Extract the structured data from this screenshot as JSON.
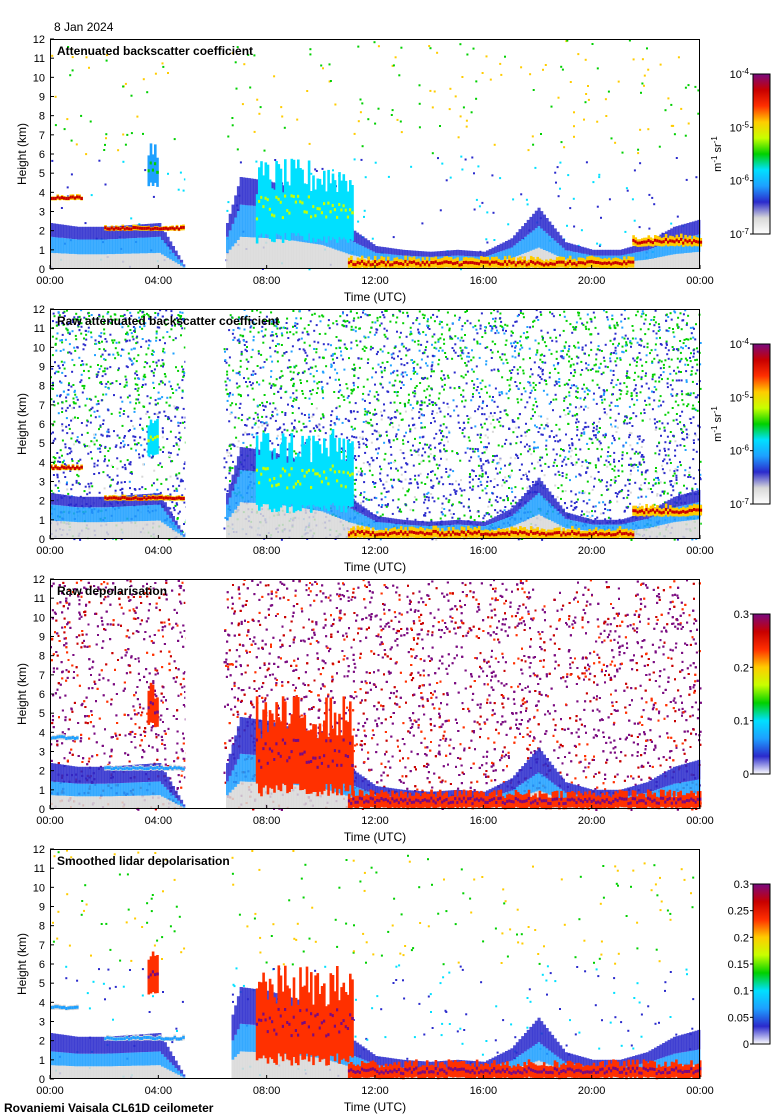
{
  "page": {
    "date": "8 Jan 2024",
    "footer": "Rovaniemi Vaisala CL61D ceilometer"
  },
  "colors": {
    "cmap": [
      "#ffffff",
      "#d8d8d8",
      "#2a2acc",
      "#1ea0ff",
      "#00e0ff",
      "#00d000",
      "#c8ff00",
      "#ffcc00",
      "#ff3000",
      "#c80000",
      "#7a0a80"
    ],
    "gap": "#ffffff",
    "frame": "#000000"
  },
  "chart_data": [
    {
      "type": "heatmap",
      "title": "Attenuated backscatter coefficient",
      "xlabel": "Time (UTC)",
      "ylabel": "Height (km)",
      "xticks": [
        "00:00",
        "04:00",
        "08:00",
        "12:00",
        "16:00",
        "20:00",
        "00:00"
      ],
      "yticks": [
        "0",
        "1",
        "2",
        "3",
        "4",
        "5",
        "6",
        "7",
        "8",
        "9",
        "10",
        "11",
        "12"
      ],
      "xlim_hours": [
        0,
        24
      ],
      "ylim": [
        0,
        12
      ],
      "colorbar": {
        "ticks": [
          "10^-7",
          "10^-6",
          "10^-5",
          "10^-4"
        ],
        "label": "m^-1 sr^-1",
        "scale": "log",
        "range": [
          1e-07,
          0.0001
        ]
      },
      "data_gap_hours": [
        5.0,
        6.4
      ],
      "background": "clear",
      "boundary_layer_top_km": [
        2.4,
        2.2,
        2.2,
        2.3,
        2.4,
        0,
        0,
        4.8,
        4.6,
        4.2,
        3.6,
        2.2,
        1.2,
        1.0,
        0.9,
        1.0,
        0.9,
        1.6,
        3.2,
        1.4,
        1.0,
        1.0,
        1.4,
        2.2,
        2.6
      ],
      "layers": [
        {
          "hours": [
            0,
            1.2
          ],
          "km": [
            3.6,
            3.85
          ],
          "level": 9
        },
        {
          "hours": [
            2.0,
            4.9
          ],
          "km": [
            2.0,
            2.25
          ],
          "level": 9
        },
        {
          "hours": [
            3.6,
            4.0
          ],
          "km": [
            4.4,
            6.2
          ],
          "level": 5
        },
        {
          "hours": [
            7.6,
            11.2
          ],
          "km": [
            1.6,
            4.8
          ],
          "level": 6
        },
        {
          "hours": [
            11.0,
            21.5
          ],
          "km": [
            0.05,
            0.55
          ],
          "level": 9
        },
        {
          "hours": [
            21.5,
            24.0
          ],
          "km": [
            1.2,
            1.7
          ],
          "level": 9
        }
      ]
    },
    {
      "type": "heatmap",
      "title": "Raw attenuated backscatter coefficient",
      "xlabel": "Time (UTC)",
      "ylabel": "Height (km)",
      "xticks": [
        "00:00",
        "04:00",
        "08:00",
        "12:00",
        "16:00",
        "20:00",
        "00:00"
      ],
      "yticks": [
        "0",
        "1",
        "2",
        "3",
        "4",
        "5",
        "6",
        "7",
        "8",
        "9",
        "10",
        "11",
        "12"
      ],
      "xlim_hours": [
        0,
        24
      ],
      "ylim": [
        0,
        12
      ],
      "colorbar": {
        "ticks": [
          "10^-7",
          "10^-6",
          "10^-5",
          "10^-4"
        ],
        "label": "m^-1 sr^-1",
        "scale": "log",
        "range": [
          1e-07,
          0.0001
        ]
      },
      "data_gap_hours": [
        5.0,
        6.4
      ],
      "background": "noise",
      "boundary_layer_top_km": [
        2.4,
        2.2,
        2.2,
        2.3,
        2.4,
        0,
        0,
        4.8,
        4.6,
        4.2,
        3.6,
        2.2,
        1.2,
        1.0,
        0.9,
        1.0,
        0.9,
        1.6,
        3.2,
        1.4,
        1.0,
        1.0,
        1.4,
        2.2,
        2.6
      ],
      "layers": [
        {
          "hours": [
            0,
            1.2
          ],
          "km": [
            3.6,
            3.85
          ],
          "level": 9
        },
        {
          "hours": [
            2.0,
            4.9
          ],
          "km": [
            2.0,
            2.25
          ],
          "level": 9
        },
        {
          "hours": [
            3.6,
            4.0
          ],
          "km": [
            4.4,
            6.2
          ],
          "level": 6
        },
        {
          "hours": [
            7.6,
            11.2
          ],
          "km": [
            1.6,
            4.8
          ],
          "level": 6
        },
        {
          "hours": [
            11.0,
            21.5
          ],
          "km": [
            0.05,
            0.55
          ],
          "level": 9
        },
        {
          "hours": [
            21.5,
            24.0
          ],
          "km": [
            1.2,
            1.7
          ],
          "level": 9
        }
      ]
    },
    {
      "type": "heatmap",
      "title": "Raw depolarisation",
      "xlabel": "Time (UTC)",
      "ylabel": "Height (km)",
      "xticks": [
        "00:00",
        "04:00",
        "08:00",
        "12:00",
        "16:00",
        "20:00",
        "00:00"
      ],
      "yticks": [
        "0",
        "1",
        "2",
        "3",
        "4",
        "5",
        "6",
        "7",
        "8",
        "9",
        "10",
        "11",
        "12"
      ],
      "xlim_hours": [
        0,
        24
      ],
      "ylim": [
        0,
        12
      ],
      "colorbar": {
        "ticks": [
          "0",
          "0.1",
          "0.2",
          "0.3"
        ],
        "label": "",
        "scale": "linear",
        "range": [
          0,
          0.3
        ]
      },
      "data_gap_hours": [
        5.0,
        6.4
      ],
      "background": "depol-noise",
      "boundary_layer_top_km": [
        2.4,
        2.2,
        2.2,
        2.3,
        2.4,
        0,
        0,
        4.8,
        4.6,
        4.2,
        3.6,
        2.2,
        1.2,
        1.0,
        0.9,
        1.0,
        0.9,
        1.6,
        3.2,
        1.4,
        1.0,
        1.0,
        1.4,
        2.2,
        2.6
      ],
      "layers": [
        {
          "hours": [
            0,
            1.0
          ],
          "km": [
            3.6,
            3.85
          ],
          "level": 3
        },
        {
          "hours": [
            2.0,
            4.9
          ],
          "km": [
            2.0,
            2.25
          ],
          "level": 3
        },
        {
          "hours": [
            3.6,
            4.0
          ],
          "km": [
            4.4,
            6.2
          ],
          "level": 10
        },
        {
          "hours": [
            7.6,
            11.2
          ],
          "km": [
            1.0,
            4.8
          ],
          "level": 10
        },
        {
          "hours": [
            11.0,
            24.0
          ],
          "km": [
            0.05,
            0.8
          ],
          "level": 10
        }
      ]
    },
    {
      "type": "heatmap",
      "title": "Smoothed lidar depolarisation",
      "xlabel": "Time (UTC)",
      "ylabel": "Height (km)",
      "xticks": [
        "00:00",
        "04:00",
        "08:00",
        "12:00",
        "16:00",
        "20:00",
        "00:00"
      ],
      "yticks": [
        "0",
        "1",
        "2",
        "3",
        "4",
        "5",
        "6",
        "7",
        "8",
        "9",
        "10",
        "11",
        "12"
      ],
      "xlim_hours": [
        0,
        24
      ],
      "ylim": [
        0,
        12
      ],
      "colorbar": {
        "ticks": [
          "0",
          "0.05",
          "0.1",
          "0.15",
          "0.2",
          "0.25",
          "0.3"
        ],
        "label": "",
        "scale": "linear",
        "range": [
          0,
          0.3
        ]
      },
      "data_gap_hours": [
        5.0,
        6.6
      ],
      "background": "clear",
      "boundary_layer_top_km": [
        2.4,
        2.2,
        2.2,
        2.3,
        2.4,
        0,
        0,
        4.8,
        4.6,
        4.2,
        3.6,
        2.2,
        1.2,
        1.0,
        0.9,
        1.0,
        0.9,
        1.6,
        3.2,
        1.4,
        1.0,
        1.0,
        1.4,
        2.2,
        2.6
      ],
      "layers": [
        {
          "hours": [
            0,
            1.0
          ],
          "km": [
            3.6,
            3.85
          ],
          "level": 3
        },
        {
          "hours": [
            2.0,
            4.9
          ],
          "km": [
            2.0,
            2.25
          ],
          "level": 3
        },
        {
          "hours": [
            3.6,
            4.0
          ],
          "km": [
            4.4,
            6.2
          ],
          "level": 10
        },
        {
          "hours": [
            7.6,
            11.2
          ],
          "km": [
            1.0,
            4.8
          ],
          "level": 10
        },
        {
          "hours": [
            11.0,
            24.0
          ],
          "km": [
            0.05,
            0.8
          ],
          "level": 10
        }
      ]
    }
  ]
}
